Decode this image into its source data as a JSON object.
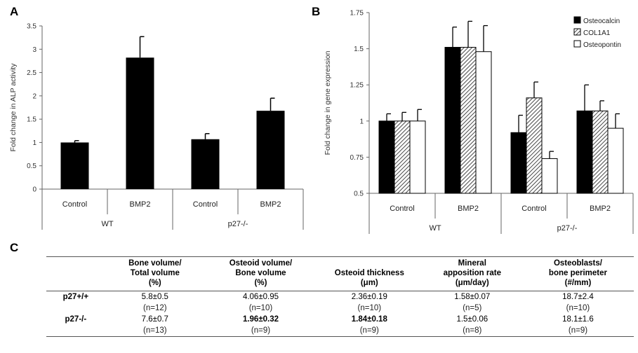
{
  "panels": {
    "a": "A",
    "b": "B",
    "c": "C"
  },
  "chart_data": [
    {
      "type": "bar",
      "ylabel": "Fold change in ALP activity",
      "ylim": [
        0,
        3.5
      ],
      "yticks": [
        "0",
        "0.5",
        "1",
        "1.5",
        "2",
        "2.5",
        "3",
        "3.5"
      ],
      "categories": [
        "Control",
        "BMP2",
        "Control",
        "BMP2"
      ],
      "groups": [
        "WT",
        "p27-/-"
      ],
      "series": [
        {
          "values": [
            1.0,
            2.82,
            1.07,
            1.68
          ],
          "errors": [
            0.04,
            0.45,
            0.12,
            0.27
          ],
          "color": "#000000"
        }
      ]
    },
    {
      "type": "bar",
      "ylabel": "Fold change in gene expression",
      "ylim": [
        0.5,
        1.75
      ],
      "yticks": [
        "0.5",
        "0.75",
        "1",
        "1.25",
        "1.5",
        "1.75"
      ],
      "categories": [
        "Control",
        "BMP2",
        "Control",
        "BMP2"
      ],
      "groups": [
        "WT",
        "p27-/-"
      ],
      "legend_position": "top-right",
      "series": [
        {
          "name": "Osteocalcin",
          "values": [
            1.0,
            1.51,
            0.92,
            1.07
          ],
          "errors": [
            0.05,
            0.14,
            0.12,
            0.18
          ],
          "fill": "solid"
        },
        {
          "name": "COL1A1",
          "values": [
            1.0,
            1.51,
            1.16,
            1.07
          ],
          "errors": [
            0.06,
            0.18,
            0.11,
            0.07
          ],
          "fill": "hatched"
        },
        {
          "name": "Osteopontin",
          "values": [
            1.0,
            1.48,
            0.74,
            0.95
          ],
          "errors": [
            0.08,
            0.18,
            0.05,
            0.1
          ],
          "fill": "white"
        }
      ]
    },
    {
      "type": "table",
      "header": [
        "",
        "Bone volume/\nTotal volume\n(%)",
        "Osteoid volume/\nBone volume\n(%)",
        "Osteoid thickness\n(μm)",
        "Mineral\napposition rate\n(μm/day)",
        "Osteoblasts/\nbone perimeter\n(#/mm)"
      ],
      "rows": [
        {
          "label": "p27+/+",
          "values": [
            "5.8±0.5",
            "4.06±0.95",
            "2.36±0.19",
            "1.58±0.07",
            "18.7±2.4"
          ],
          "n": [
            "(n=12)",
            "(n=10)",
            "(n=10)",
            "(n=5)",
            "(n=10)"
          ],
          "bold": [
            false,
            false,
            false,
            false,
            false
          ]
        },
        {
          "label": "p27-/-",
          "values": [
            "7.6±0.7",
            "1.96±0.32",
            "1.84±0.18",
            "1.5±0.06",
            "18.1±1.6"
          ],
          "n": [
            "(n=13)",
            "(n=9)",
            "(n=9)",
            "(n=8)",
            "(n=9)"
          ],
          "bold": [
            false,
            true,
            true,
            false,
            false
          ]
        }
      ]
    }
  ]
}
